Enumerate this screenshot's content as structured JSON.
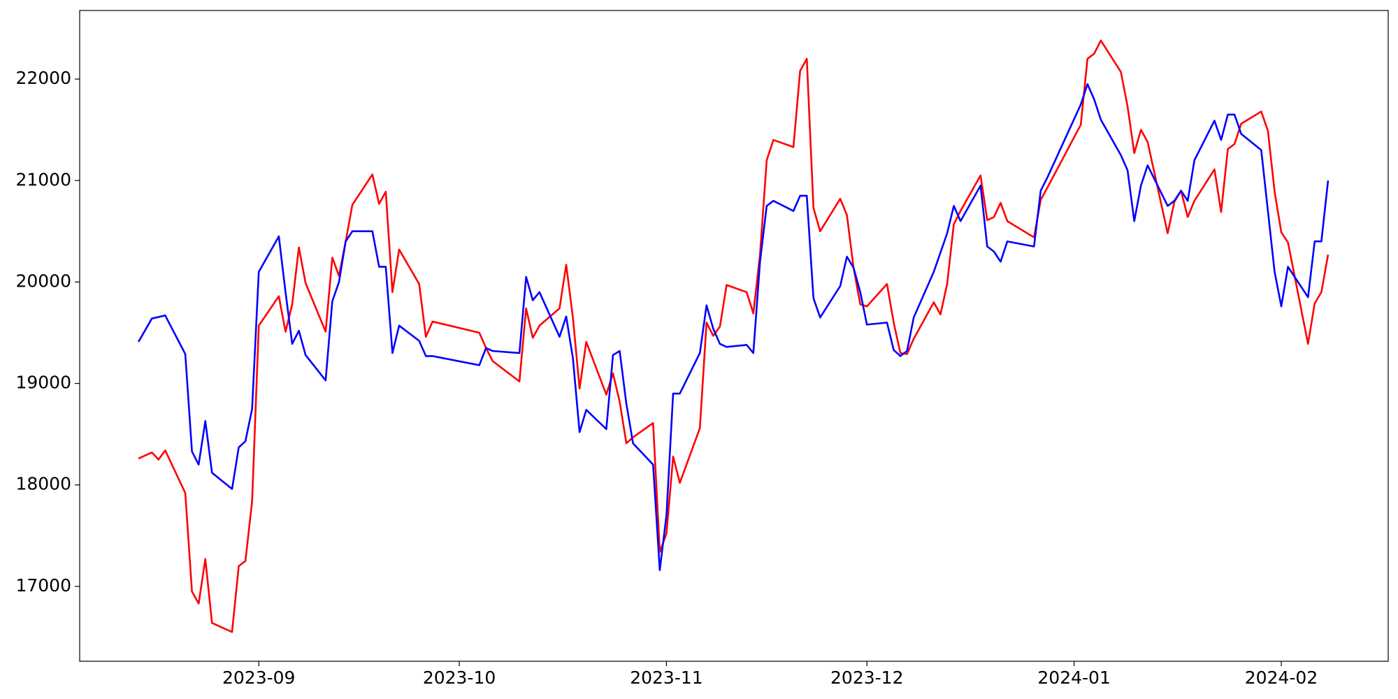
{
  "chart_data": {
    "type": "line",
    "x": [
      19583,
      19585,
      19586,
      19587,
      19590,
      19591,
      19592,
      19593,
      19594,
      19597,
      19598,
      19599,
      19600,
      19601,
      19604,
      19605,
      19606,
      19607,
      19608,
      19611,
      19612,
      19613,
      19614,
      19615,
      19618,
      19619,
      19620,
      19621,
      19622,
      19625,
      19626,
      19627,
      19634,
      19635,
      19636,
      19640,
      19641,
      19642,
      19643,
      19646,
      19647,
      19648,
      19649,
      19650,
      19653,
      19654,
      19655,
      19656,
      19657,
      19660,
      19661,
      19662,
      19663,
      19664,
      19667,
      19668,
      19669,
      19670,
      19671,
      19674,
      19675,
      19676,
      19677,
      19678,
      19681,
      19682,
      19683,
      19684,
      19685,
      19688,
      19689,
      19690,
      19691,
      19692,
      19695,
      19696,
      19697,
      19698,
      19699,
      19702,
      19703,
      19704,
      19705,
      19706,
      19709,
      19710,
      19711,
      19712,
      19713,
      19717,
      19718,
      19719,
      19724,
      19725,
      19726,
      19727,
      19730,
      19731,
      19732,
      19733,
      19734,
      19737,
      19738,
      19739,
      19740,
      19741,
      19744,
      19745,
      19746,
      19747,
      19748,
      19751,
      19752,
      19753,
      19754,
      19755,
      19758,
      19759,
      19760,
      19761
    ],
    "series": [
      {
        "color": "#ff0000",
        "values": [
          18260,
          18320,
          18250,
          18340,
          17920,
          16950,
          16830,
          17270,
          16640,
          16550,
          17200,
          17250,
          17840,
          19570,
          19860,
          19510,
          19780,
          20340,
          19990,
          19510,
          20240,
          20060,
          20400,
          20760,
          21060,
          20770,
          20890,
          19900,
          20320,
          19980,
          19460,
          19610,
          19500,
          19350,
          19220,
          19020,
          19740,
          19450,
          19570,
          19740,
          20170,
          19650,
          18950,
          19410,
          18890,
          19100,
          18820,
          18410,
          18470,
          18610,
          17340,
          17520,
          18280,
          18020,
          18560,
          19600,
          19470,
          19560,
          19970,
          19900,
          19690,
          20270,
          21200,
          21400,
          21330,
          22080,
          22200,
          20730,
          20500,
          20820,
          20660,
          20140,
          19780,
          19760,
          19980,
          19600,
          19300,
          19290,
          19440,
          19800,
          19680,
          19980,
          20570,
          20700,
          21050,
          20610,
          20640,
          20780,
          20600,
          20440,
          20810,
          20930,
          21550,
          22200,
          22250,
          22380,
          22070,
          21730,
          21270,
          21500,
          21380,
          20480,
          20790,
          20900,
          20640,
          20800,
          21110,
          20690,
          21310,
          21360,
          21560,
          21680,
          21490,
          20890,
          20490,
          20390,
          19390,
          19790,
          19900,
          20270
        ]
      },
      {
        "color": "#0000ff",
        "values": [
          19410,
          19640,
          19655,
          19670,
          19290,
          18330,
          18200,
          18630,
          18120,
          17960,
          18370,
          18430,
          18750,
          20100,
          20450,
          19900,
          19390,
          19520,
          19280,
          19030,
          19810,
          20000,
          20400,
          20500,
          20500,
          20150,
          20150,
          19300,
          19570,
          19420,
          19270,
          19270,
          19180,
          19350,
          19320,
          19300,
          20050,
          19820,
          19900,
          19460,
          19660,
          19250,
          18520,
          18740,
          18550,
          19280,
          19320,
          18800,
          18410,
          18200,
          17160,
          17700,
          18900,
          18900,
          19300,
          19770,
          19540,
          19390,
          19360,
          19380,
          19300,
          20200,
          20750,
          20800,
          20700,
          20850,
          20850,
          19840,
          19650,
          19960,
          20250,
          20140,
          19900,
          19580,
          19600,
          19330,
          19270,
          19320,
          19650,
          20100,
          20290,
          20480,
          20750,
          20600,
          20950,
          20350,
          20300,
          20200,
          20400,
          20350,
          20900,
          21030,
          21750,
          21950,
          21800,
          21600,
          21250,
          21100,
          20600,
          20950,
          21150,
          20750,
          20800,
          20900,
          20800,
          21200,
          21590,
          21400,
          21650,
          21650,
          21460,
          21300,
          20700,
          20100,
          19760,
          20150,
          19850,
          20400,
          20400,
          21000
        ]
      }
    ],
    "xlim": [
      19574.2,
      19770
    ],
    "xticks": [
      {
        "value": 19601,
        "label": "2023-09"
      },
      {
        "value": 19631,
        "label": "2023-10"
      },
      {
        "value": 19662,
        "label": "2023-11"
      },
      {
        "value": 19692,
        "label": "2023-12"
      },
      {
        "value": 19723,
        "label": "2024-01"
      },
      {
        "value": 19754,
        "label": "2024-02"
      }
    ],
    "ylim": [
      16262,
      22676
    ],
    "yticks": [
      17000,
      18000,
      19000,
      20000,
      21000,
      22000
    ],
    "grid": false
  }
}
